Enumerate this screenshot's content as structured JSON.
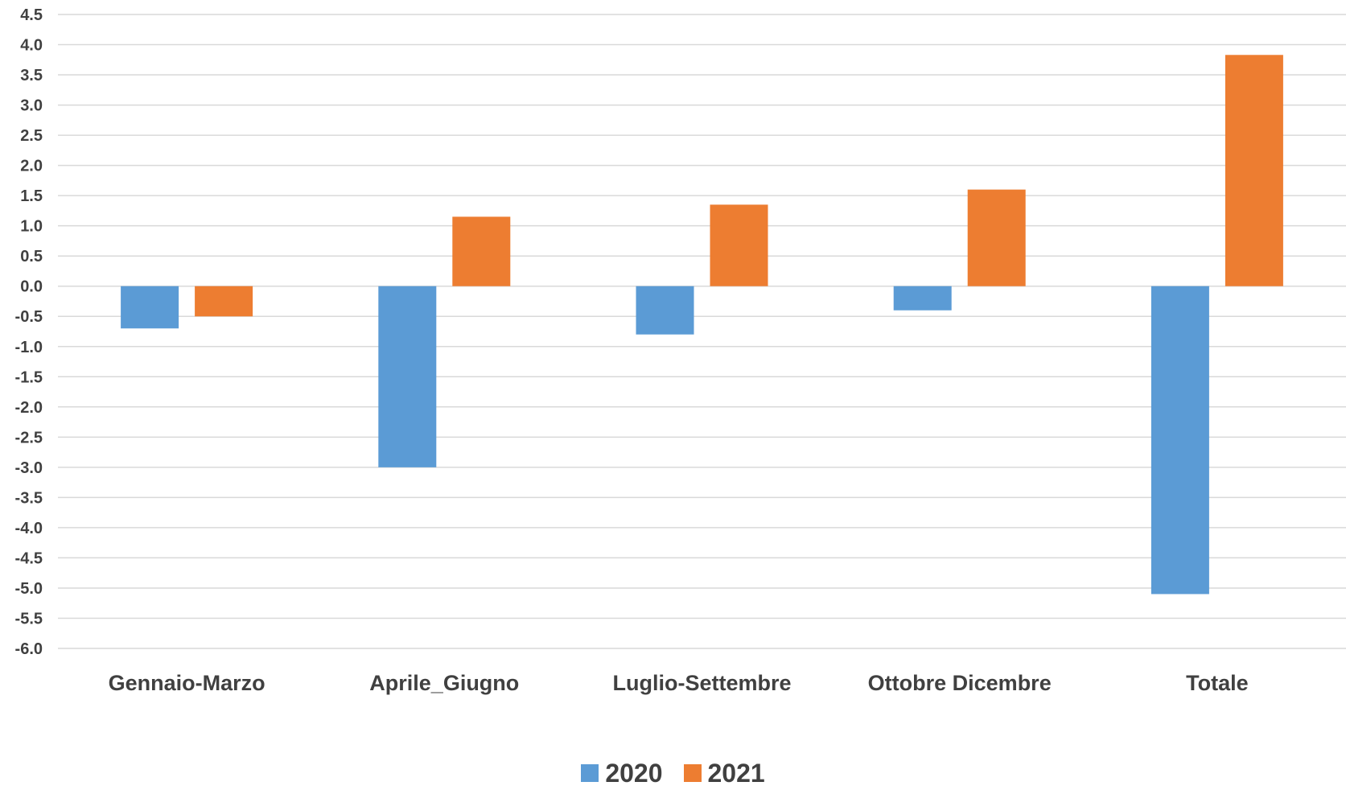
{
  "chart_data": {
    "type": "bar",
    "categories": [
      "Gennaio-Marzo",
      "Aprile_Giugno",
      "Luglio-Settembre",
      "Ottobre Dicembre",
      "Totale"
    ],
    "series": [
      {
        "name": "2020",
        "color": "#5B9BD5",
        "values": [
          -0.7,
          -3.0,
          -0.8,
          -0.4,
          -5.1
        ]
      },
      {
        "name": "2021",
        "color": "#ED7D31",
        "values": [
          -0.5,
          1.15,
          1.35,
          1.6,
          3.83
        ]
      }
    ],
    "ylim": [
      -6.0,
      4.5
    ],
    "ytick_step": 0.5,
    "yticks": [
      "4.5",
      "4.0",
      "3.5",
      "3.0",
      "2.5",
      "2.0",
      "1.5",
      "1.0",
      "0.5",
      "0.0",
      "-0.5",
      "-1.0",
      "-1.5",
      "-2.0",
      "-2.5",
      "-3.0",
      "-3.5",
      "-4.0",
      "-4.5",
      "-5.0",
      "-5.5",
      "-6.0"
    ],
    "grid": true,
    "legend_position": "bottom",
    "title": "",
    "xlabel": "",
    "ylabel": ""
  }
}
